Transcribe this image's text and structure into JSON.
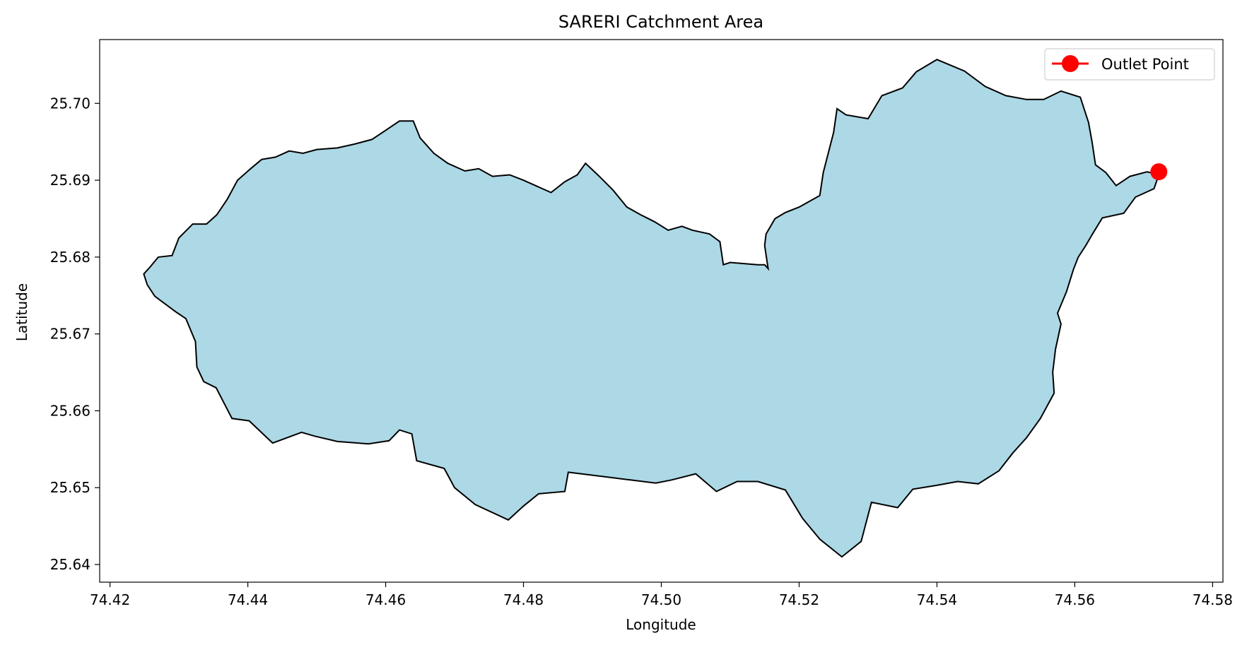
{
  "chart_data": {
    "type": "map",
    "title": "SARERI Catchment Area",
    "xlabel": "Longitude",
    "ylabel": "Latitude",
    "xlim": [
      74.4185,
      74.5815
    ],
    "ylim": [
      25.6377,
      25.7083
    ],
    "xticks": [
      {
        "value": 74.42,
        "label": "74.42"
      },
      {
        "value": 74.44,
        "label": "74.44"
      },
      {
        "value": 74.46,
        "label": "74.46"
      },
      {
        "value": 74.48,
        "label": "74.48"
      },
      {
        "value": 74.5,
        "label": "74.50"
      },
      {
        "value": 74.52,
        "label": "74.52"
      },
      {
        "value": 74.54,
        "label": "74.54"
      },
      {
        "value": 74.56,
        "label": "74.56"
      },
      {
        "value": 74.58,
        "label": "74.58"
      }
    ],
    "yticks": [
      {
        "value": 25.64,
        "label": "25.64"
      },
      {
        "value": 25.65,
        "label": "25.65"
      },
      {
        "value": 25.66,
        "label": "25.66"
      },
      {
        "value": 25.67,
        "label": "25.67"
      },
      {
        "value": 25.68,
        "label": "25.68"
      },
      {
        "value": 25.69,
        "label": "25.69"
      },
      {
        "value": 25.7,
        "label": "25.70"
      }
    ],
    "grid": false,
    "legend_position": "upper right",
    "legend": [
      {
        "label": "Outlet Point",
        "marker": "circle",
        "color": "#ff0000"
      }
    ],
    "catchment": {
      "fill": "#add8e6",
      "edge": "#000000",
      "boundary": [
        [
          74.4249,
          25.6778
        ],
        [
          74.4254,
          25.6764
        ],
        [
          74.4265,
          25.6749
        ],
        [
          74.4295,
          25.6729
        ],
        [
          74.431,
          25.672
        ],
        [
          74.4324,
          25.669
        ],
        [
          74.4326,
          25.6657
        ],
        [
          74.4336,
          25.6638
        ],
        [
          74.4354,
          25.663
        ],
        [
          74.4377,
          25.659
        ],
        [
          74.4402,
          25.6587
        ],
        [
          74.4436,
          25.6558
        ],
        [
          74.4478,
          25.6572
        ],
        [
          74.4497,
          25.6567
        ],
        [
          74.453,
          25.656
        ],
        [
          74.4575,
          25.6557
        ],
        [
          74.4605,
          25.6561
        ],
        [
          74.462,
          25.6575
        ],
        [
          74.4638,
          25.657
        ],
        [
          74.4645,
          25.6535
        ],
        [
          74.4685,
          25.6525
        ],
        [
          74.47,
          25.65
        ],
        [
          74.473,
          25.6478
        ],
        [
          74.4778,
          25.6458
        ],
        [
          74.48,
          25.6476
        ],
        [
          74.4822,
          25.6492
        ],
        [
          74.486,
          25.6495
        ],
        [
          74.4865,
          25.652
        ],
        [
          74.492,
          25.6514
        ],
        [
          74.4955,
          25.651
        ],
        [
          74.4992,
          25.6506
        ],
        [
          74.5015,
          25.651
        ],
        [
          74.505,
          25.6518
        ],
        [
          74.508,
          25.6495
        ],
        [
          74.511,
          25.6508
        ],
        [
          74.514,
          25.6508
        ],
        [
          74.518,
          25.6497
        ],
        [
          74.5205,
          25.646
        ],
        [
          74.523,
          25.6433
        ],
        [
          74.5262,
          25.641
        ],
        [
          74.529,
          25.643
        ],
        [
          74.5305,
          25.6481
        ],
        [
          74.5343,
          25.6474
        ],
        [
          74.5365,
          25.6498
        ],
        [
          74.54,
          25.6503
        ],
        [
          74.543,
          25.6508
        ],
        [
          74.546,
          25.6505
        ],
        [
          74.549,
          25.6522
        ],
        [
          74.551,
          25.6545
        ],
        [
          74.553,
          25.6565
        ],
        [
          74.555,
          25.659
        ],
        [
          74.557,
          25.6623
        ],
        [
          74.5568,
          25.665
        ],
        [
          74.5572,
          25.668
        ],
        [
          74.558,
          25.6713
        ],
        [
          74.5575,
          25.6727
        ],
        [
          74.5588,
          25.6755
        ],
        [
          74.5598,
          25.6784
        ],
        [
          74.5605,
          25.68
        ],
        [
          74.5616,
          25.6815
        ],
        [
          74.5625,
          25.6829
        ],
        [
          74.564,
          25.6851
        ],
        [
          74.5671,
          25.6857
        ],
        [
          74.5688,
          25.6878
        ],
        [
          74.5715,
          25.6889
        ],
        [
          74.5722,
          25.6907
        ],
        [
          74.5705,
          25.6911
        ],
        [
          74.568,
          25.6905
        ],
        [
          74.566,
          25.6893
        ],
        [
          74.5645,
          25.691
        ],
        [
          74.563,
          25.692
        ],
        [
          74.5625,
          25.695
        ],
        [
          74.562,
          25.6975
        ],
        [
          74.5608,
          25.7008
        ],
        [
          74.558,
          25.7016
        ],
        [
          74.5555,
          25.7005
        ],
        [
          74.553,
          25.7005
        ],
        [
          74.55,
          25.701
        ],
        [
          74.547,
          25.7022
        ],
        [
          74.544,
          25.7042
        ],
        [
          74.54,
          25.7057
        ],
        [
          74.537,
          25.7041
        ],
        [
          74.535,
          25.702
        ],
        [
          74.532,
          25.701
        ],
        [
          74.53,
          25.698
        ],
        [
          74.5268,
          25.6985
        ],
        [
          74.5255,
          25.6993
        ],
        [
          74.525,
          25.6962
        ],
        [
          74.5235,
          25.691
        ],
        [
          74.523,
          25.688
        ],
        [
          74.52,
          25.6865
        ],
        [
          74.518,
          25.6858
        ],
        [
          74.5165,
          25.685
        ],
        [
          74.5152,
          25.683
        ],
        [
          74.515,
          25.6815
        ],
        [
          74.5155,
          25.6785
        ],
        [
          74.515,
          25.679
        ],
        [
          74.514,
          25.679
        ],
        [
          74.51,
          25.6793
        ],
        [
          74.509,
          25.679
        ],
        [
          74.5085,
          25.682
        ],
        [
          74.507,
          25.683
        ],
        [
          74.5045,
          25.6835
        ],
        [
          74.503,
          25.684
        ],
        [
          74.501,
          25.6835
        ],
        [
          74.499,
          25.6846
        ],
        [
          74.497,
          25.6855
        ],
        [
          74.495,
          25.6865
        ],
        [
          74.493,
          25.6887
        ],
        [
          74.491,
          25.6905
        ],
        [
          74.489,
          25.6922
        ],
        [
          74.4878,
          25.6907
        ],
        [
          74.486,
          25.6898
        ],
        [
          74.484,
          25.6884
        ],
        [
          74.482,
          25.6892
        ],
        [
          74.48,
          25.69
        ],
        [
          74.478,
          25.6907
        ],
        [
          74.4755,
          25.6905
        ],
        [
          74.4735,
          25.6915
        ],
        [
          74.4715,
          25.6912
        ],
        [
          74.469,
          25.6922
        ],
        [
          74.467,
          25.6935
        ],
        [
          74.465,
          25.6955
        ],
        [
          74.464,
          25.6977
        ],
        [
          74.462,
          25.6977
        ],
        [
          74.46,
          25.6965
        ],
        [
          74.458,
          25.6953
        ],
        [
          74.4555,
          25.6947
        ],
        [
          74.453,
          25.6942
        ],
        [
          74.45,
          25.694
        ],
        [
          74.448,
          25.6935
        ],
        [
          74.446,
          25.6938
        ],
        [
          74.444,
          25.693
        ],
        [
          74.442,
          25.6927
        ],
        [
          74.4404,
          25.6915
        ],
        [
          74.4385,
          25.69
        ],
        [
          74.437,
          25.6875
        ],
        [
          74.4355,
          25.6855
        ],
        [
          74.434,
          25.6843
        ],
        [
          74.432,
          25.6843
        ],
        [
          74.43,
          25.6825
        ],
        [
          74.429,
          25.6802
        ],
        [
          74.427,
          25.68
        ],
        [
          74.4258,
          25.6787
        ]
      ]
    },
    "outlet_point": {
      "label": "Outlet Point",
      "lon": 74.5722,
      "lat": 25.6911,
      "color": "#ff0000"
    }
  }
}
